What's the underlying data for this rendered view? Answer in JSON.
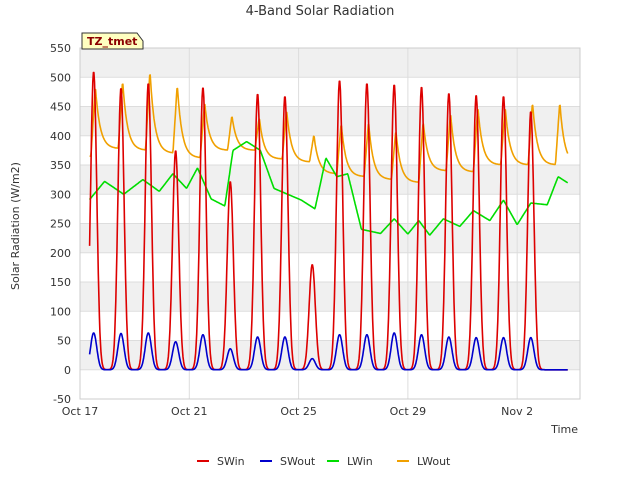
{
  "chart_data": {
    "type": "line",
    "title": "4-Band Solar Radiation",
    "xlabel": "Time",
    "ylabel": "Solar Radiation (W/m2)",
    "badge": "TZ_tmet",
    "ylim": [
      -50,
      550
    ],
    "yticks": [
      -50,
      0,
      50,
      100,
      150,
      200,
      250,
      300,
      350,
      400,
      450,
      500,
      550
    ],
    "xlim_day": [
      0,
      18.3
    ],
    "xticks": [
      {
        "day": 0,
        "label": "Oct 17"
      },
      {
        "day": 4,
        "label": "Oct 21"
      },
      {
        "day": 8,
        "label": "Oct 25"
      },
      {
        "day": 12,
        "label": "Oct 29"
      },
      {
        "day": 16,
        "label": "Nov 2"
      }
    ],
    "grid": true,
    "legend_position": "bottom",
    "series": [
      {
        "name": "SWin",
        "color": "#dd0000",
        "daily_peaks": [
          510,
          482,
          490,
          375,
          483,
          322,
          472,
          468,
          180,
          495,
          490,
          488,
          484,
          473,
          470,
          468,
          442
        ]
      },
      {
        "name": "SWout",
        "color": "#0000cc",
        "daily_peaks": [
          63,
          62,
          63,
          48,
          60,
          36,
          56,
          56,
          19,
          60,
          60,
          63,
          60,
          56,
          55,
          55,
          55
        ]
      },
      {
        "name": "LWin",
        "color": "#00dd00",
        "approx_points": [
          [
            0.3,
            288
          ],
          [
            0.9,
            322
          ],
          [
            1.6,
            300
          ],
          [
            2.3,
            325
          ],
          [
            2.9,
            305
          ],
          [
            3.4,
            335
          ],
          [
            3.9,
            310
          ],
          [
            4.3,
            345
          ],
          [
            4.8,
            292
          ],
          [
            5.3,
            280
          ],
          [
            5.6,
            375
          ],
          [
            6.1,
            390
          ],
          [
            6.6,
            375
          ],
          [
            7.1,
            310
          ],
          [
            7.6,
            300
          ],
          [
            8.1,
            290
          ],
          [
            8.6,
            275
          ],
          [
            9.0,
            362
          ],
          [
            9.4,
            330
          ],
          [
            9.8,
            335
          ],
          [
            10.3,
            240
          ],
          [
            11.0,
            233
          ],
          [
            11.5,
            258
          ],
          [
            12.0,
            232
          ],
          [
            12.4,
            255
          ],
          [
            12.8,
            230
          ],
          [
            13.3,
            258
          ],
          [
            13.9,
            245
          ],
          [
            14.4,
            272
          ],
          [
            15.0,
            255
          ],
          [
            15.5,
            290
          ],
          [
            16.0,
            248
          ],
          [
            16.5,
            285
          ],
          [
            17.1,
            282
          ],
          [
            17.5,
            330
          ],
          [
            18.0,
            315
          ]
        ]
      },
      {
        "name": "LWout",
        "color": "#f0a000",
        "daily_peaks": [
          485,
          495,
          512,
          488,
          458,
          435,
          432,
          445,
          402,
          422,
          425,
          410,
          425,
          440,
          450,
          450,
          458
        ],
        "daily_minima": [
          365,
          378,
          375,
          370,
          362,
          375,
          375,
          360,
          355,
          335,
          330,
          325,
          320,
          340,
          338,
          350,
          350
        ]
      }
    ]
  }
}
